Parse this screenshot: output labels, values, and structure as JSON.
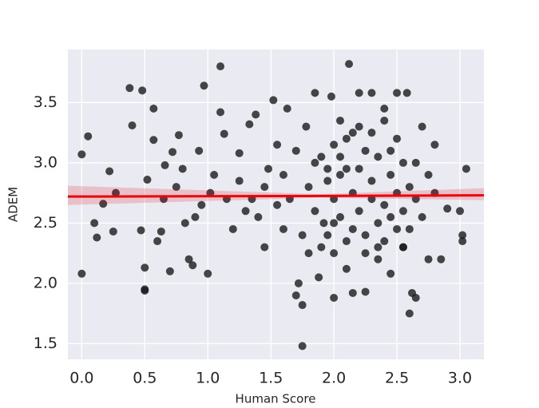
{
  "chart_data": {
    "type": "scatter",
    "x_label": "Human Score",
    "y_label": "ADEM",
    "color": "#1a1a1a",
    "background": "#eaeaf2",
    "grid": true,
    "xlim": [
      -0.11,
      3.19
    ],
    "ylim": [
      1.37,
      3.94
    ],
    "xticks": [
      {
        "value": 0,
        "label": "0.0"
      },
      0.5,
      {
        "value": 1,
        "label": "1.0"
      },
      1.5,
      {
        "value": 2,
        "label": "2.0"
      },
      2.5,
      {
        "value": 3,
        "label": "3.0"
      }
    ],
    "yticks": [
      1.5,
      {
        "value": 2,
        "label": "2.0"
      },
      2.5,
      {
        "value": 3,
        "label": "3.0"
      },
      3.5
    ],
    "x": [
      0.0,
      0.05,
      0.0,
      0.1,
      0.12,
      0.17,
      0.22,
      0.25,
      0.27,
      0.38,
      0.4,
      0.48,
      0.47,
      0.5,
      0.5,
      0.5,
      0.52,
      0.57,
      0.57,
      0.6,
      0.63,
      0.66,
      0.7,
      0.72,
      0.77,
      0.8,
      0.85,
      0.88,
      0.9,
      0.93,
      0.97,
      1.0,
      1.05,
      1.1,
      1.1,
      1.13,
      1.2,
      1.25,
      1.3,
      1.33,
      1.38,
      1.45,
      1.48,
      1.52,
      1.55,
      1.6,
      1.63,
      1.7,
      1.72,
      1.75,
      1.75,
      1.78,
      1.8,
      1.85,
      1.88,
      1.92,
      1.95,
      1.98,
      2.0,
      2.05,
      2.1,
      2.12,
      2.15,
      2.2,
      2.25,
      2.3,
      2.35,
      2.4,
      2.45,
      2.5,
      2.55,
      2.58,
      2.6,
      2.62,
      2.65,
      2.7,
      2.75,
      2.8,
      2.85,
      2.9,
      3.0,
      3.02,
      3.02,
      3.05,
      0.65,
      0.75,
      0.82,
      0.95,
      1.02,
      1.15,
      1.25,
      1.35,
      1.4,
      1.45,
      1.55,
      1.6,
      1.65,
      1.7,
      1.8,
      1.85,
      1.9,
      1.95,
      2.0,
      2.0,
      2.05,
      2.05,
      2.1,
      2.1,
      2.15,
      2.15,
      2.2,
      2.2,
      2.25,
      2.25,
      2.3,
      2.3,
      2.35,
      2.35,
      2.4,
      2.4,
      2.45,
      2.45,
      2.5,
      2.5,
      2.55,
      2.55,
      2.6,
      2.6,
      2.65,
      2.7,
      2.75,
      2.8,
      1.9,
      2.0,
      2.1,
      2.2,
      2.3,
      2.4,
      2.5,
      1.95,
      2.05,
      2.15,
      2.25,
      2.35,
      2.45,
      2.55,
      2.65,
      1.75,
      1.85,
      2.0
    ],
    "y": [
      3.07,
      3.22,
      2.08,
      2.5,
      2.38,
      2.66,
      2.93,
      2.43,
      2.75,
      3.62,
      3.31,
      3.6,
      2.44,
      1.94,
      1.95,
      2.13,
      2.86,
      3.45,
      3.19,
      2.35,
      2.43,
      2.98,
      2.1,
      3.09,
      3.23,
      2.95,
      2.2,
      2.15,
      2.55,
      3.1,
      3.64,
      2.08,
      2.9,
      3.8,
      3.42,
      3.24,
      2.45,
      3.08,
      2.6,
      3.32,
      3.4,
      2.3,
      2.95,
      3.52,
      3.15,
      2.45,
      3.45,
      1.9,
      2.0,
      1.82,
      1.48,
      3.3,
      2.25,
      3.58,
      2.05,
      2.5,
      2.95,
      3.55,
      1.88,
      3.35,
      2.12,
      3.82,
      1.92,
      3.58,
      1.93,
      3.58,
      2.2,
      3.45,
      2.08,
      3.58,
      2.3,
      3.58,
      1.75,
      1.92,
      1.88,
      3.3,
      2.2,
      3.15,
      2.2,
      2.62,
      2.6,
      2.4,
      2.35,
      2.95,
      2.7,
      2.8,
      2.5,
      2.65,
      2.75,
      2.7,
      2.85,
      2.7,
      2.55,
      2.8,
      2.65,
      2.9,
      2.7,
      3.1,
      2.8,
      2.6,
      3.05,
      2.4,
      2.7,
      3.15,
      2.55,
      2.9,
      2.35,
      3.2,
      2.75,
      2.45,
      2.95,
      2.6,
      3.1,
      2.4,
      2.7,
      2.85,
      2.5,
      3.05,
      2.65,
      2.35,
      2.9,
      2.55,
      2.75,
      2.45,
      3.0,
      2.6,
      2.8,
      2.45,
      2.7,
      2.55,
      2.9,
      2.75,
      2.3,
      2.25,
      2.95,
      3.3,
      3.25,
      3.35,
      3.2,
      2.85,
      3.05,
      3.25,
      2.25,
      2.3,
      3.1,
      2.3,
      3.0,
      2.4,
      3.0,
      2.5
    ],
    "regression": {
      "color": "#e8000b",
      "x": [
        -0.11,
        1.9,
        3.19
      ],
      "y": [
        2.72,
        2.725,
        2.73
      ],
      "ci_lower": [
        2.65,
        2.71,
        2.69
      ],
      "ci_upper": [
        2.81,
        2.74,
        2.79
      ]
    }
  }
}
